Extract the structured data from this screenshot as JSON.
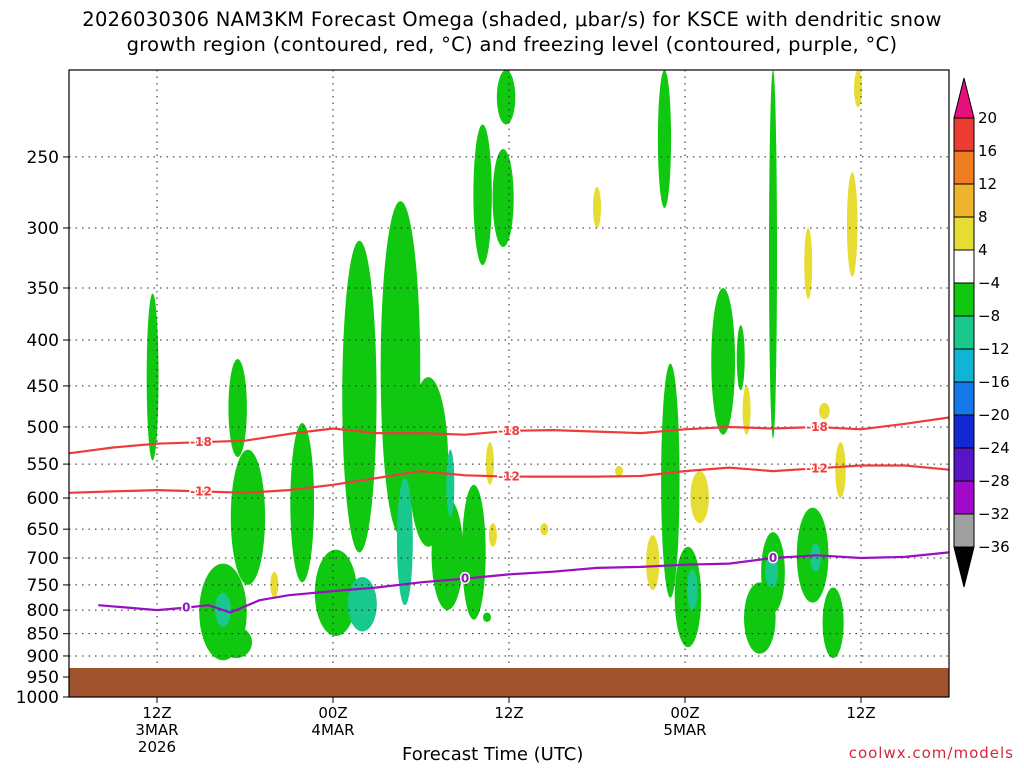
{
  "title_line1": "2026030306 NAM3KM Forecast Omega (shaded, μbar/s) for KSCE with dendritic snow",
  "title_line2": "growth region (contoured, red, °C) and freezing level (contoured, purple, °C)",
  "credit": "coolwx.com/models",
  "chart_data": {
    "type": "heatmap",
    "title": "2026030306 NAM3KM Forecast Omega (shaded, μbar/s) for KSCE with dendritic snow growth region (contoured, red, °C) and freezing level (contoured, purple, °C)",
    "xlabel": "Forecast Time (UTC)",
    "ylabel": "",
    "y_scale": "log-pressure (inverted)",
    "ylim": [
      1000,
      200
    ],
    "xlim": [
      "2026-03-03 06Z",
      "2026-03-05 18Z"
    ],
    "y_ticks": [
      250,
      300,
      350,
      400,
      450,
      500,
      550,
      600,
      650,
      700,
      750,
      800,
      850,
      900,
      950,
      1000
    ],
    "x_ticks": [
      {
        "time": "2026-03-03 12Z",
        "label": [
          "12Z",
          "3MAR",
          "2026"
        ]
      },
      {
        "time": "2026-03-04 00Z",
        "label": [
          "00Z",
          "4MAR"
        ]
      },
      {
        "time": "2026-03-04 12Z",
        "label": [
          "12Z"
        ]
      },
      {
        "time": "2026-03-05 00Z",
        "label": [
          "00Z",
          "5MAR"
        ]
      },
      {
        "time": "2026-03-05 12Z",
        "label": [
          "12Z"
        ]
      }
    ],
    "grid": "dotted",
    "colorbar": {
      "labels": [
        "20",
        "16",
        "12",
        "8",
        "4",
        "−4",
        "−8",
        "−12",
        "−16",
        "−20",
        "−24",
        "−28",
        "−32",
        "−36"
      ],
      "colors": [
        "#e60f7c",
        "#ee3b32",
        "#f07d1f",
        "#f0b42d",
        "#e6dc32",
        "#ffffff",
        "#10c810",
        "#18c88c",
        "#10b4d4",
        "#1478e6",
        "#1428d2",
        "#5a14c8",
        "#a00ac8",
        "#a0a0a0",
        "#000000"
      ]
    },
    "contours": [
      {
        "name": "-18",
        "color": "#ee3b3b",
        "hours": [
          0,
          3,
          6,
          9,
          12,
          15,
          18,
          21,
          24,
          27,
          30,
          33,
          36,
          39,
          42,
          45,
          48,
          51,
          54,
          57,
          60
        ],
        "values": [
          535,
          527,
          522,
          520,
          518,
          509,
          502,
          508,
          508,
          510,
          505,
          504,
          506,
          508,
          503,
          500,
          502,
          500,
          503,
          496,
          488
        ]
      },
      {
        "name": "-12",
        "color": "#ee3b3b",
        "hours": [
          0,
          3,
          6,
          9,
          12,
          15,
          18,
          21,
          24,
          27,
          30,
          33,
          36,
          39,
          42,
          45,
          48,
          51,
          54,
          57,
          60
        ],
        "values": [
          592,
          590,
          588,
          590,
          592,
          588,
          580,
          570,
          560,
          566,
          568,
          568,
          568,
          567,
          560,
          555,
          560,
          556,
          552,
          552,
          558
        ]
      },
      {
        "name": "0",
        "color": "#9a0fbf",
        "hours": [
          2,
          4,
          6,
          8,
          9.5,
          11,
          13,
          15,
          18,
          21,
          24,
          27,
          30,
          33,
          36,
          39,
          42,
          45,
          48,
          51,
          54,
          57,
          60
        ],
        "values": [
          790,
          795,
          800,
          795,
          790,
          805,
          780,
          770,
          762,
          755,
          745,
          738,
          730,
          725,
          718,
          716,
          712,
          710,
          700,
          695,
          700,
          698,
          690
        ]
      }
    ],
    "omega_regions": [
      {
        "t": 5.7,
        "p": 450,
        "w": 0.45,
        "h": 190,
        "value": -6
      },
      {
        "t": 10.5,
        "p": 810,
        "w": 1.8,
        "h": 200,
        "value": -6
      },
      {
        "t": 10.5,
        "p": 800,
        "w": 0.6,
        "h": 70,
        "value": -10
      },
      {
        "t": 11.4,
        "p": 870,
        "w": 1.2,
        "h": 70,
        "value": -6
      },
      {
        "t": 11.5,
        "p": 480,
        "w": 0.7,
        "h": 120,
        "value": -6
      },
      {
        "t": 12.2,
        "p": 640,
        "w": 1.3,
        "h": 220,
        "value": -6
      },
      {
        "t": 14.0,
        "p": 750,
        "w": 0.3,
        "h": 50,
        "value": 6
      },
      {
        "t": 15.9,
        "p": 620,
        "w": 0.9,
        "h": 250,
        "value": -6
      },
      {
        "t": 18.2,
        "p": 770,
        "w": 1.6,
        "h": 170,
        "value": -6
      },
      {
        "t": 19.8,
        "p": 500,
        "w": 1.3,
        "h": 380,
        "value": -6
      },
      {
        "t": 20.0,
        "p": 790,
        "w": 1.1,
        "h": 110,
        "value": -10
      },
      {
        "t": 22.6,
        "p": 470,
        "w": 1.5,
        "h": 380,
        "value": -6
      },
      {
        "t": 22.9,
        "p": 680,
        "w": 0.6,
        "h": 220,
        "value": -10
      },
      {
        "t": 24.5,
        "p": 560,
        "w": 1.5,
        "h": 240,
        "value": -6
      },
      {
        "t": 25.8,
        "p": 700,
        "w": 1.2,
        "h": 200,
        "value": -6
      },
      {
        "t": 26.0,
        "p": 580,
        "w": 0.3,
        "h": 100,
        "value": -10
      },
      {
        "t": 27.6,
        "p": 700,
        "w": 0.9,
        "h": 240,
        "value": -6
      },
      {
        "t": 28.2,
        "p": 280,
        "w": 0.7,
        "h": 100,
        "value": -6
      },
      {
        "t": 28.7,
        "p": 550,
        "w": 0.25,
        "h": 60,
        "value": 6
      },
      {
        "t": 28.9,
        "p": 660,
        "w": 0.25,
        "h": 40,
        "value": 6
      },
      {
        "t": 28.5,
        "p": 815,
        "w": 0.2,
        "h": 20,
        "value": -6
      },
      {
        "t": 29.6,
        "p": 280,
        "w": 0.8,
        "h": 70,
        "value": -6
      },
      {
        "t": 29.8,
        "p": 200,
        "w": 0.7,
        "h": 60,
        "value": -6
      },
      {
        "t": 32.4,
        "p": 650,
        "w": 0.2,
        "h": 20,
        "value": 6
      },
      {
        "t": 36.0,
        "p": 285,
        "w": 0.25,
        "h": 30,
        "value": 6
      },
      {
        "t": 37.5,
        "p": 560,
        "w": 0.2,
        "h": 15,
        "value": 6
      },
      {
        "t": 39.8,
        "p": 710,
        "w": 0.5,
        "h": 100,
        "value": 6
      },
      {
        "t": 40.6,
        "p": 240,
        "w": 0.5,
        "h": 90,
        "value": -6
      },
      {
        "t": 41.0,
        "p": 600,
        "w": 0.7,
        "h": 350,
        "value": -6
      },
      {
        "t": 42.2,
        "p": 780,
        "w": 1.0,
        "h": 200,
        "value": -6
      },
      {
        "t": 42.5,
        "p": 760,
        "w": 0.4,
        "h": 80,
        "value": -10
      },
      {
        "t": 43.0,
        "p": 600,
        "w": 0.7,
        "h": 80,
        "value": 6
      },
      {
        "t": 44.6,
        "p": 430,
        "w": 0.9,
        "h": 160,
        "value": -6
      },
      {
        "t": 45.8,
        "p": 420,
        "w": 0.3,
        "h": 70,
        "value": -6
      },
      {
        "t": 46.2,
        "p": 480,
        "w": 0.2,
        "h": 60,
        "value": 6
      },
      {
        "t": 47.1,
        "p": 820,
        "w": 1.2,
        "h": 150,
        "value": -6
      },
      {
        "t": 48.0,
        "p": 730,
        "w": 0.9,
        "h": 150,
        "value": -6
      },
      {
        "t": 47.9,
        "p": 725,
        "w": 0.5,
        "h": 60,
        "value": -10
      },
      {
        "t": 48.0,
        "p": 350,
        "w": 0.3,
        "h": 330,
        "value": -6
      },
      {
        "t": 50.4,
        "p": 330,
        "w": 0.25,
        "h": 60,
        "value": 6
      },
      {
        "t": 50.7,
        "p": 700,
        "w": 1.2,
        "h": 170,
        "value": -6
      },
      {
        "t": 50.9,
        "p": 700,
        "w": 0.4,
        "h": 50,
        "value": -10
      },
      {
        "t": 51.5,
        "p": 480,
        "w": 0.4,
        "h": 20,
        "value": 6
      },
      {
        "t": 52.1,
        "p": 830,
        "w": 0.8,
        "h": 150,
        "value": -6
      },
      {
        "t": 52.6,
        "p": 560,
        "w": 0.4,
        "h": 80,
        "value": 6
      },
      {
        "t": 53.4,
        "p": 300,
        "w": 0.4,
        "h": 80,
        "value": 6
      },
      {
        "t": 53.8,
        "p": 200,
        "w": 0.3,
        "h": 40,
        "value": 6
      }
    ]
  }
}
